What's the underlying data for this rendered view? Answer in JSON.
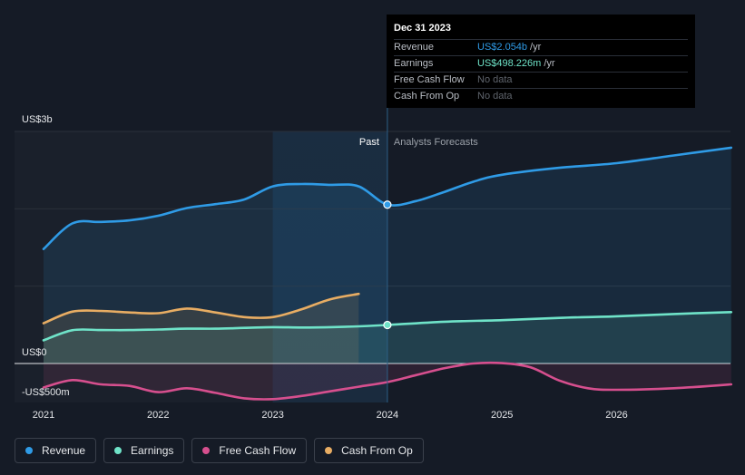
{
  "tooltip": {
    "date": "Dec 31 2023",
    "rows": [
      {
        "label": "Revenue",
        "value": "US$2.054b",
        "unit": "/yr",
        "color": "#2f9be6"
      },
      {
        "label": "Earnings",
        "value": "US$498.226m",
        "unit": "/yr",
        "color": "#6fe3c8"
      },
      {
        "label": "Free Cash Flow",
        "value": "No data",
        "unit": "",
        "color": "#5f646c"
      },
      {
        "label": "Cash From Op",
        "value": "No data",
        "unit": "",
        "color": "#5f646c"
      }
    ]
  },
  "legend": [
    {
      "label": "Revenue",
      "color": "#2f9be6"
    },
    {
      "label": "Earnings",
      "color": "#6fe3c8"
    },
    {
      "label": "Free Cash Flow",
      "color": "#d64f8e"
    },
    {
      "label": "Cash From Op",
      "color": "#e8ad63"
    }
  ],
  "chart_data": {
    "type": "area",
    "title": "",
    "ylim": [
      -500,
      3000
    ],
    "y_unit": "US$ m",
    "y_tick_labels": [
      {
        "value": 3000,
        "label": "US$3b"
      },
      {
        "value": 0,
        "label": "US$0"
      },
      {
        "value": -500,
        "label": "-US$500m"
      }
    ],
    "xlim": [
      2021.0,
      2027.0
    ],
    "x_tick_labels": [
      "2021",
      "2022",
      "2023",
      "2024",
      "2025",
      "2026"
    ],
    "x_ticks": [
      2021,
      2022,
      2023,
      2024,
      2025,
      2026
    ],
    "divider_x": 2024.0,
    "highlight_start_x": 2023.0,
    "region_labels": {
      "past": "Past",
      "forecast": "Analysts Forecasts"
    },
    "series": [
      {
        "name": "Revenue",
        "color": "#2f9be6",
        "points": [
          [
            2021.0,
            1480
          ],
          [
            2021.25,
            1810
          ],
          [
            2021.5,
            1830
          ],
          [
            2021.75,
            1850
          ],
          [
            2022.0,
            1910
          ],
          [
            2022.25,
            2010
          ],
          [
            2022.5,
            2060
          ],
          [
            2022.75,
            2120
          ],
          [
            2023.0,
            2290
          ],
          [
            2023.25,
            2320
          ],
          [
            2023.5,
            2310
          ],
          [
            2023.75,
            2290
          ],
          [
            2024.0,
            2054
          ],
          [
            2024.25,
            2100
          ],
          [
            2024.5,
            2220
          ],
          [
            2024.75,
            2350
          ],
          [
            2025.0,
            2440
          ],
          [
            2025.5,
            2530
          ],
          [
            2026.0,
            2590
          ],
          [
            2026.5,
            2690
          ],
          [
            2027.0,
            2790
          ]
        ],
        "highlight_points": [
          [
            2024.0,
            2054
          ]
        ]
      },
      {
        "name": "Earnings",
        "color": "#6fe3c8",
        "points": [
          [
            2021.0,
            300
          ],
          [
            2021.25,
            430
          ],
          [
            2021.5,
            432
          ],
          [
            2021.75,
            432
          ],
          [
            2022.0,
            440
          ],
          [
            2022.25,
            450
          ],
          [
            2022.5,
            450
          ],
          [
            2022.75,
            460
          ],
          [
            2023.0,
            470
          ],
          [
            2023.25,
            465
          ],
          [
            2023.5,
            470
          ],
          [
            2023.75,
            480
          ],
          [
            2024.0,
            498.226
          ],
          [
            2024.5,
            540
          ],
          [
            2025.0,
            560
          ],
          [
            2025.5,
            590
          ],
          [
            2026.0,
            610
          ],
          [
            2026.5,
            640
          ],
          [
            2027.0,
            665
          ]
        ],
        "highlight_points": [
          [
            2024.0,
            498.226
          ]
        ]
      },
      {
        "name": "Free Cash Flow",
        "color": "#d64f8e",
        "points": [
          [
            2021.0,
            -310
          ],
          [
            2021.25,
            -215
          ],
          [
            2021.5,
            -270
          ],
          [
            2021.75,
            -290
          ],
          [
            2022.0,
            -370
          ],
          [
            2022.25,
            -320
          ],
          [
            2022.5,
            -380
          ],
          [
            2022.75,
            -450
          ],
          [
            2023.0,
            -460
          ],
          [
            2023.25,
            -420
          ],
          [
            2023.5,
            -360
          ],
          [
            2023.75,
            -300
          ],
          [
            2024.0,
            -240
          ],
          [
            2024.25,
            -150
          ],
          [
            2024.5,
            -60
          ],
          [
            2024.75,
            0
          ],
          [
            2025.0,
            5
          ],
          [
            2025.25,
            -50
          ],
          [
            2025.5,
            -220
          ],
          [
            2025.75,
            -320
          ],
          [
            2026.0,
            -340
          ],
          [
            2026.5,
            -320
          ],
          [
            2027.0,
            -270
          ]
        ],
        "highlight_points": []
      },
      {
        "name": "Cash From Op",
        "color": "#e8ad63",
        "points": [
          [
            2021.0,
            520
          ],
          [
            2021.25,
            670
          ],
          [
            2021.5,
            680
          ],
          [
            2021.75,
            660
          ],
          [
            2022.0,
            650
          ],
          [
            2022.25,
            710
          ],
          [
            2022.5,
            660
          ],
          [
            2022.75,
            600
          ],
          [
            2023.0,
            600
          ],
          [
            2023.25,
            700
          ],
          [
            2023.5,
            830
          ],
          [
            2023.75,
            900
          ]
        ],
        "highlight_points": []
      }
    ]
  }
}
